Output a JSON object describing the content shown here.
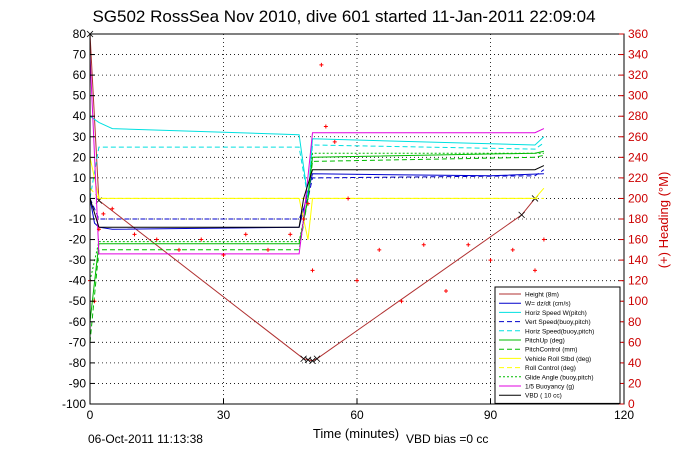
{
  "chart_data": {
    "type": "line",
    "title": "SG502 RossSea Nov 2010, dive 601 started 11-Jan-2011 22:09:04",
    "xlabel": "Time (minutes)",
    "ylabel_right": "(+) Heading (°M)",
    "xlim": [
      0,
      120
    ],
    "ylim": [
      -100,
      80
    ],
    "ylim_right": [
      0,
      360
    ],
    "xticks": [
      0,
      30,
      60,
      90,
      120
    ],
    "yticks": [
      -100,
      -90,
      -80,
      -70,
      -60,
      -50,
      -40,
      -30,
      -20,
      -10,
      0,
      10,
      20,
      30,
      40,
      50,
      60,
      70,
      80
    ],
    "yticks_right": [
      0,
      20,
      40,
      60,
      80,
      100,
      120,
      140,
      160,
      180,
      200,
      220,
      240,
      260,
      280,
      300,
      320,
      340,
      360
    ],
    "grid": true,
    "legend_position": "bottom-right",
    "colors": {
      "height": "#b03030",
      "w": "#0000cc",
      "horiz_speed": "#00e0e0",
      "vert_speed_model": "#0000cc",
      "horiz_speed_model": "#00e0e0",
      "pitch": "#00bb00",
      "pitch_control": "#00bb00",
      "roll": "#ffff00",
      "roll_control": "#ffff00",
      "glide_angle": "#00bb00",
      "buoyancy": "#e000e0",
      "vbd": "#000000",
      "heading": "#ff0000"
    },
    "series": [
      {
        "name": "Height (8m)",
        "x": [
          0,
          2,
          48,
          49,
          50,
          51,
          97,
          100
        ],
        "y": [
          80,
          -1,
          -78,
          -78.5,
          -79,
          -78,
          -8,
          0
        ]
      },
      {
        "name": "W= dz/dt (cm/s)",
        "x": [
          0,
          1,
          2,
          5,
          47,
          50,
          90,
          102
        ],
        "y": [
          0,
          -12,
          -14,
          -15,
          -14,
          12,
          11,
          12
        ]
      },
      {
        "name": "Horiz Speed W(pitch)",
        "x": [
          0,
          2,
          5,
          47,
          49,
          50,
          100,
          102
        ],
        "y": [
          40,
          37,
          34,
          31,
          0,
          29,
          26,
          30
        ]
      },
      {
        "name": "Vert Speed(buoy,pitch)",
        "x": [
          0,
          2,
          47,
          49,
          50,
          100,
          102
        ],
        "y": [
          0,
          -10,
          -10,
          0,
          10,
          11,
          14
        ]
      },
      {
        "name": "Horiz Speed(buoy,pitch)",
        "x": [
          0,
          2,
          47,
          49,
          50,
          100,
          102
        ],
        "y": [
          0,
          25,
          25,
          0,
          26,
          24,
          27
        ]
      },
      {
        "name": "PitchUp (deg)",
        "x": [
          0,
          2,
          47,
          49,
          50,
          100,
          102
        ],
        "y": [
          -60,
          -22,
          -22,
          0,
          20,
          22,
          23
        ]
      },
      {
        "name": "PitchControl (mm)",
        "x": [
          0,
          2,
          47,
          49,
          50,
          100,
          102
        ],
        "y": [
          -70,
          -25,
          -25,
          0,
          18,
          20,
          21
        ]
      },
      {
        "name": "Vehicle Roll Stbd (deg)",
        "x": [
          0,
          2,
          47,
          49,
          50,
          100,
          102
        ],
        "y": [
          20,
          0,
          0,
          -20,
          0,
          0,
          5
        ]
      },
      {
        "name": "Roll Control (deg)",
        "x": [
          0,
          2,
          47,
          49,
          50,
          100,
          102
        ],
        "y": [
          5,
          0,
          0,
          0,
          0,
          0,
          0
        ]
      },
      {
        "name": "Glide Angle (buoy,pitch)",
        "x": [
          0,
          2,
          47,
          49,
          50,
          100,
          102
        ],
        "y": [
          -40,
          -21,
          -21,
          0,
          22,
          22,
          22
        ]
      },
      {
        "name": "1/5 Buoyancy (g)",
        "x": [
          0,
          2,
          47,
          48,
          50,
          100,
          102
        ],
        "y": [
          70,
          -27,
          -27,
          -10,
          32,
          32,
          34
        ]
      },
      {
        "name": "VBD ( 10 cc)",
        "x": [
          0,
          2,
          47,
          48,
          50,
          100,
          102
        ],
        "y": [
          0,
          -14,
          -14,
          0,
          14,
          14,
          16
        ]
      },
      {
        "name": "Heading",
        "axis": "right",
        "x": [
          0,
          1,
          2,
          3,
          5,
          10,
          15,
          20,
          25,
          30,
          35,
          40,
          45,
          48,
          49,
          50,
          52,
          53,
          55,
          58,
          60,
          65,
          70,
          75,
          80,
          85,
          90,
          95,
          100,
          102
        ],
        "y": [
          120,
          100,
          170,
          185,
          190,
          165,
          160,
          150,
          160,
          145,
          165,
          150,
          165,
          180,
          195,
          130,
          330,
          270,
          255,
          200,
          120,
          150,
          100,
          155,
          110,
          155,
          140,
          150,
          130,
          160
        ]
      }
    ]
  },
  "footer": {
    "timestamp": "06-Oct-2011 11:13:38",
    "vbd_bias": "VBD bias =0 cc"
  }
}
